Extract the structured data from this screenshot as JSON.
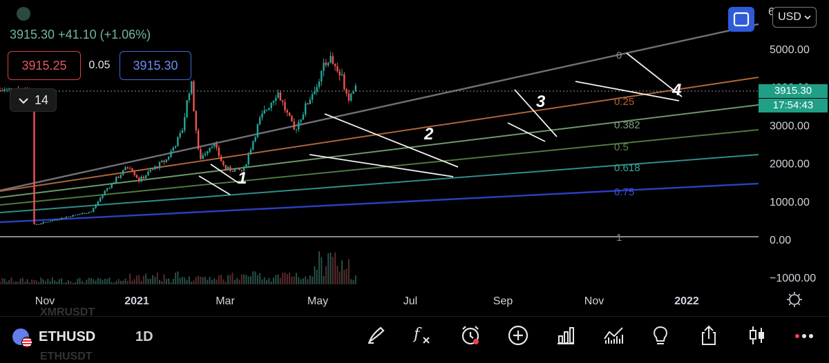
{
  "header": {
    "quote": "3915.30 +41.10 (+1.06%)",
    "bid": "3915.25",
    "spread": "0.05",
    "ask": "3915.30",
    "interval": "14"
  },
  "currency": "USD",
  "price_axis": {
    "labels": [
      "5000.00",
      "4000.00",
      "3000.00",
      "2000.00",
      "1000.00",
      "0.00",
      "−1000.00"
    ],
    "partial_top": "6"
  },
  "last_price": "3915.30",
  "countdown": "17:54:43",
  "time_axis": [
    "Nov",
    "2021",
    "Mar",
    "May",
    "Jul",
    "Sep",
    "Nov",
    "2022"
  ],
  "fib_levels": [
    "0",
    "0.25",
    "0.382",
    "0.5",
    "0.618",
    "0.75",
    "1"
  ],
  "annotations": [
    "1",
    "2",
    "3",
    "4"
  ],
  "symbol": "ETHUSD",
  "timeframe": "1D",
  "ghost_symbols": [
    "XMRUSDT",
    "ETHUSDT"
  ],
  "colors": {
    "up": "#26a69a",
    "down": "#ef5350",
    "accent": "#2f5bd8",
    "price_tag": "#1f9f86",
    "bid": "#d9424b",
    "ask": "#3f6be0"
  },
  "toolbar_icons": [
    "brush-icon",
    "function-icon",
    "alarm-icon",
    "plus-circle-icon",
    "bar-chart-icon",
    "indicators-icon",
    "idea-icon",
    "share-icon",
    "candles-icon",
    "more-icon"
  ],
  "chart_data": {
    "type": "candlestick",
    "symbol": "ETHUSD",
    "timeframe": "1D",
    "ylim": [
      -1000,
      6000
    ],
    "x_ticks": [
      "Nov",
      "2021",
      "Mar",
      "May",
      "Jul",
      "Sep",
      "Nov",
      "2022"
    ],
    "fib_fan_levels": [
      0,
      0.25,
      0.382,
      0.5,
      0.618,
      0.75,
      1
    ],
    "last_close": 3915.3,
    "price_path": [
      {
        "t": "2020-10-15",
        "close": 370
      },
      {
        "t": "2020-12-01",
        "close": 600
      },
      {
        "t": "2021-01-01",
        "close": 730
      },
      {
        "t": "2021-01-20",
        "close": 1300
      },
      {
        "t": "2021-02-20",
        "close": 1950
      },
      {
        "t": "2021-03-05",
        "close": 1550
      },
      {
        "t": "2021-03-20",
        "close": 1800
      },
      {
        "t": "2021-04-10",
        "close": 2100
      },
      {
        "t": "2021-04-30",
        "close": 2800
      },
      {
        "t": "2021-05-12",
        "close": 4200
      },
      {
        "t": "2021-05-23",
        "close": 2100
      },
      {
        "t": "2021-06-10",
        "close": 2550
      },
      {
        "t": "2021-06-26",
        "close": 1850
      },
      {
        "t": "2021-07-20",
        "close": 1800
      },
      {
        "t": "2021-08-10",
        "close": 3100
      },
      {
        "t": "2021-09-03",
        "close": 3900
      },
      {
        "t": "2021-09-25",
        "close": 2850
      },
      {
        "t": "2021-10-20",
        "close": 3900
      },
      {
        "t": "2021-11-10",
        "close": 4800
      },
      {
        "t": "2021-11-28",
        "close": 4200
      },
      {
        "t": "2021-12-05",
        "close": 3750
      },
      {
        "t": "2021-12-15",
        "close": 3915
      }
    ]
  }
}
